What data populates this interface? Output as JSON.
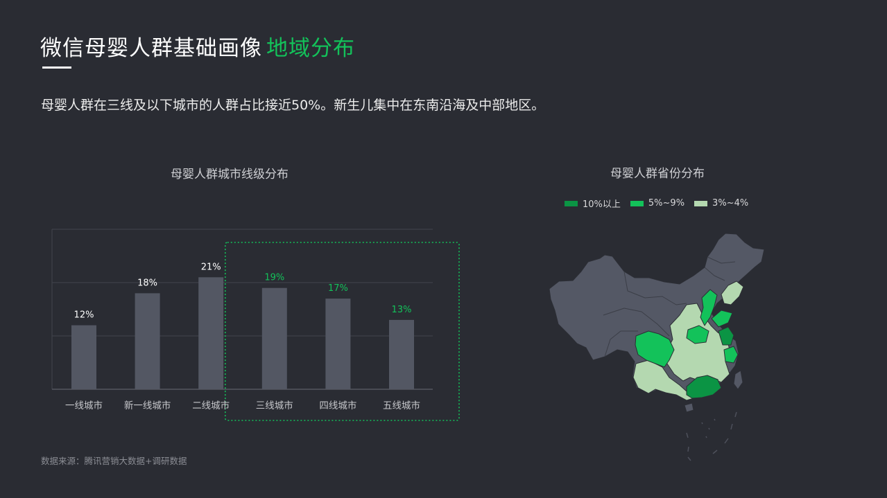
{
  "header": {
    "title_main": "微信母婴人群基础画像",
    "title_highlight": "地域分布",
    "subtitle": "母婴人群在三线及以下城市的人群占比接近50%。新生儿集中在东南沿海及中部地区。"
  },
  "source": "数据来源：腾讯营销大数据+调研数据",
  "colors": {
    "background": "#2a2c33",
    "bar": "#535763",
    "highlight_green": "#13c25a",
    "legend_dark_green": "#0b9444",
    "legend_mid_green": "#13c25a",
    "legend_light_green": "#b4d8b0",
    "map_gray": "#545865"
  },
  "chart_data": [
    {
      "type": "bar",
      "title": "母婴人群城市线级分布",
      "categories": [
        "一线城市",
        "新一线城市",
        "二线城市",
        "三线城市",
        "四线城市",
        "五线城市"
      ],
      "values": [
        12,
        18,
        21,
        19,
        17,
        13
      ],
      "labels": [
        "12%",
        "18%",
        "21%",
        "19%",
        "17%",
        "13%"
      ],
      "highlighted": [
        false,
        false,
        false,
        true,
        true,
        true
      ],
      "ylim": [
        0,
        30
      ],
      "grid": true,
      "annotation": "三线城市 to 五线城市 enclosed by a dotted green box"
    }
  ],
  "map": {
    "title": "母婴人群省份分布",
    "legend": [
      {
        "label": "10%以上",
        "color": "#0b9444"
      },
      {
        "label": "5%~9%",
        "color": "#13c25a"
      },
      {
        "label": "3%~4%",
        "color": "#b4d8b0"
      }
    ]
  }
}
